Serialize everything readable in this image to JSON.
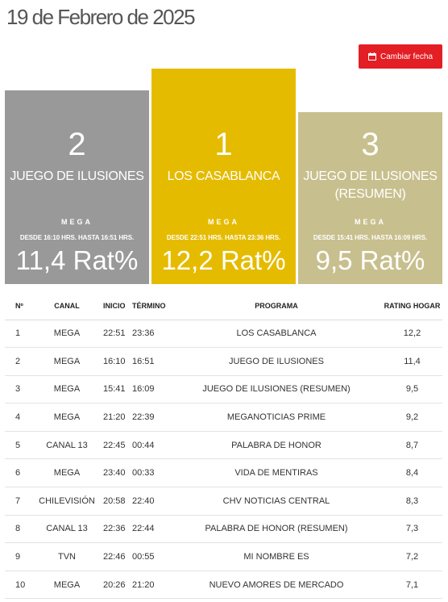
{
  "header": {
    "title": "19 de Febrero de 2025",
    "change_date_label": "Cambiar fecha",
    "change_date_icon": "calendar-icon"
  },
  "podium": [
    {
      "rank": "2",
      "program": "JUEGO DE ILUSIONES",
      "program_line2": "",
      "channel": "MEGA",
      "time_range": "DESDE 16:10 HRS. HASTA 16:51 HRS.",
      "rating": "11,4 Rat%",
      "color": "#999999"
    },
    {
      "rank": "1",
      "program": "LOS CASABLANCA",
      "program_line2": "",
      "channel": "MEGA",
      "time_range": "DESDE 22:51 HRS. HASTA 23:36 HRS.",
      "rating": "12,2 Rat%",
      "color": "#e5bb00"
    },
    {
      "rank": "3",
      "program": "JUEGO DE ILUSIONES",
      "program_line2": "(RESUMEN)",
      "channel": "MEGA",
      "time_range": "DESDE 15:41 HRS. HASTA 16:09 HRS.",
      "rating": "9,5 Rat%",
      "color": "#c8bf8e"
    }
  ],
  "table": {
    "headers": {
      "num": "Nº",
      "channel": "CANAL",
      "start": "INICIO",
      "end": "TÉRMINO",
      "program": "PROGRAMA",
      "rating": "RATING HOGAR"
    },
    "rows": [
      {
        "num": "1",
        "channel": "MEGA",
        "start": "22:51",
        "end": "23:36",
        "program": "LOS CASABLANCA",
        "rating": "12,2"
      },
      {
        "num": "2",
        "channel": "MEGA",
        "start": "16:10",
        "end": "16:51",
        "program": "JUEGO DE ILUSIONES",
        "rating": "11,4"
      },
      {
        "num": "3",
        "channel": "MEGA",
        "start": "15:41",
        "end": "16:09",
        "program": "JUEGO DE ILUSIONES (RESUMEN)",
        "rating": "9,5"
      },
      {
        "num": "4",
        "channel": "MEGA",
        "start": "21:20",
        "end": "22:39",
        "program": "MEGANOTICIAS PRIME",
        "rating": "9,2"
      },
      {
        "num": "5",
        "channel": "CANAL 13",
        "start": "22:45",
        "end": "00:44",
        "program": "PALABRA DE HONOR",
        "rating": "8,7"
      },
      {
        "num": "6",
        "channel": "MEGA",
        "start": "23:40",
        "end": "00:33",
        "program": "VIDA DE MENTIRAS",
        "rating": "8,4"
      },
      {
        "num": "7",
        "channel": "CHILEVISIÓN",
        "start": "20:58",
        "end": "22:40",
        "program": "CHV NOTICIAS CENTRAL",
        "rating": "8,3"
      },
      {
        "num": "8",
        "channel": "CANAL 13",
        "start": "22:36",
        "end": "22:44",
        "program": "PALABRA DE HONOR (RESUMEN)",
        "rating": "7,3"
      },
      {
        "num": "9",
        "channel": "TVN",
        "start": "22:46",
        "end": "00:55",
        "program": "MI NOMBRE ES",
        "rating": "7,2"
      },
      {
        "num": "10",
        "channel": "MEGA",
        "start": "20:26",
        "end": "21:20",
        "program": "NUEVO AMORES DE MERCADO",
        "rating": "7,1"
      }
    ]
  }
}
